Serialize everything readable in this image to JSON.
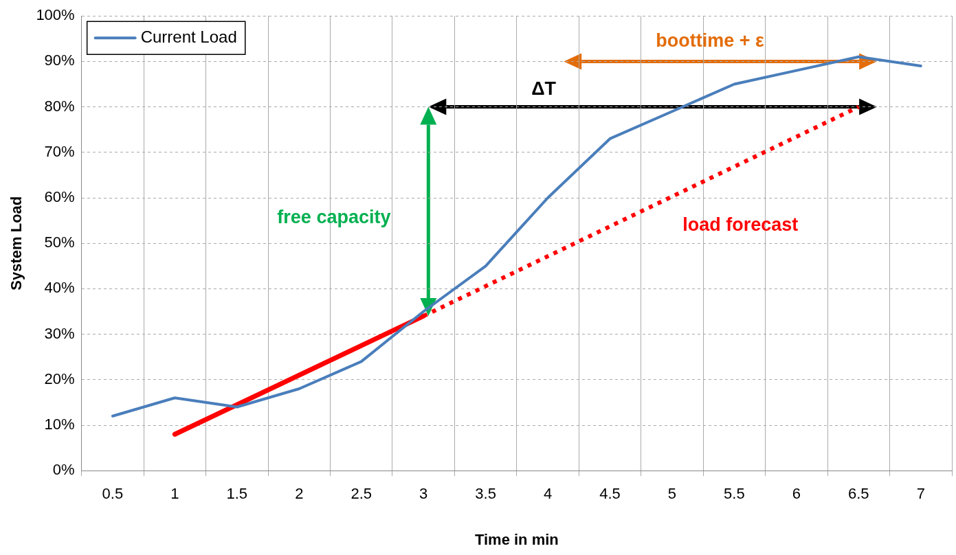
{
  "chart_data": {
    "type": "line",
    "xlabel": "Time in min",
    "ylabel": "System Load",
    "categories": [
      "0.5",
      "1",
      "1.5",
      "2",
      "2.5",
      "3",
      "3.5",
      "4",
      "4.5",
      "5",
      "5.5",
      "6",
      "6.5",
      "7"
    ],
    "series": [
      {
        "name": "Current Load",
        "color": "#4a7ebb",
        "values": [
          12,
          16,
          14,
          18,
          24,
          35,
          45,
          60,
          73,
          79,
          85,
          88,
          91,
          89
        ]
      },
      {
        "color": "#ff0000",
        "values": [
          null,
          8,
          null,
          null,
          null,
          34,
          null,
          null,
          null,
          null,
          null,
          null,
          null,
          null
        ],
        "line_style": "solid"
      },
      {
        "color": "#ff0000",
        "values": [
          null,
          null,
          null,
          null,
          null,
          34,
          null,
          null,
          null,
          null,
          null,
          null,
          80,
          null
        ],
        "line_style": "dotted"
      }
    ],
    "ylim": [
      0,
      100
    ],
    "yticks": [
      {
        "value": 0,
        "label": "0%"
      },
      {
        "value": 10,
        "label": "10%"
      },
      {
        "value": 20,
        "label": "20%"
      },
      {
        "value": 30,
        "label": "30%"
      },
      {
        "value": 40,
        "label": "40%"
      },
      {
        "value": 50,
        "label": "50%"
      },
      {
        "value": 60,
        "label": "60%"
      },
      {
        "value": 70,
        "label": "70%"
      },
      {
        "value": 80,
        "label": "80%"
      },
      {
        "value": 90,
        "label": "90%"
      },
      {
        "value": 100,
        "label": "100%"
      }
    ],
    "annotations": [
      "free capacity",
      "ΔT",
      "boottime + ε",
      "load forecast"
    ],
    "grid": true,
    "legend": "top left",
    "line_style": "solid"
  }
}
